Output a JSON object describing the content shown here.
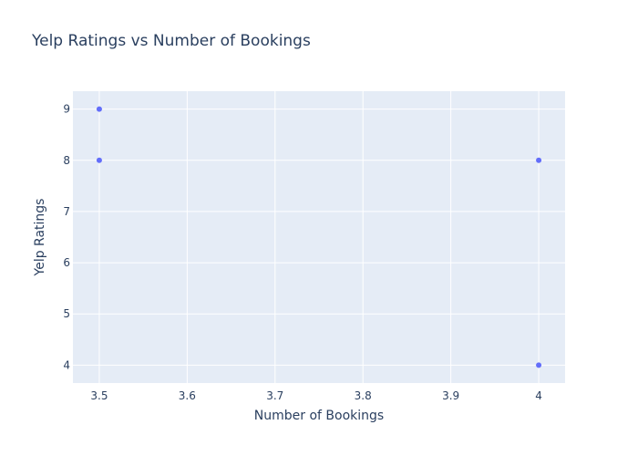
{
  "chart_data": {
    "type": "scatter",
    "title": "Yelp Ratings vs Number of Bookings",
    "xlabel": "Number of Bookings",
    "ylabel": "Yelp Ratings",
    "xlim": [
      3.47,
      4.03
    ],
    "ylim": [
      3.65,
      9.35
    ],
    "xticks": [
      3.5,
      3.6,
      3.7,
      3.8,
      3.9,
      4
    ],
    "xtick_labels": [
      "3.5",
      "3.6",
      "3.7",
      "3.8",
      "3.9",
      "4"
    ],
    "yticks": [
      4,
      5,
      6,
      7,
      8,
      9
    ],
    "ytick_labels": [
      "4",
      "5",
      "6",
      "7",
      "8",
      "9"
    ],
    "grid": true,
    "legend": "none",
    "series": [
      {
        "points": [
          {
            "x": 3.5,
            "y": 9
          },
          {
            "x": 3.5,
            "y": 8
          },
          {
            "x": 4,
            "y": 8
          },
          {
            "x": 4,
            "y": 4
          }
        ]
      }
    ],
    "colors": {
      "plot_background": "#e5ecf6",
      "grid": "#ffffff",
      "marker": "#636efa",
      "text": "#2a3f5f"
    }
  }
}
